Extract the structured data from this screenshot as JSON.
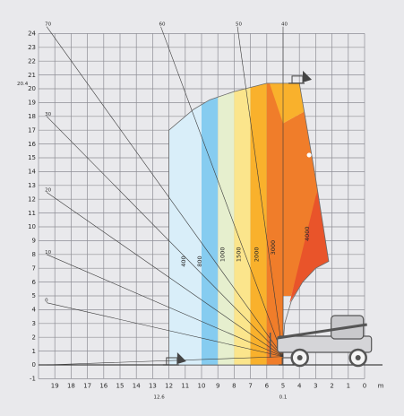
{
  "chart_data": {
    "type": "area",
    "title": "",
    "xlabel": "",
    "xunit_label": "m",
    "xlim": [
      0,
      20
    ],
    "ylim": [
      -1,
      24
    ],
    "x_ticks": [
      "19",
      "18",
      "17",
      "16",
      "15",
      "14",
      "13",
      "12",
      "11",
      "10",
      "9",
      "8",
      "7",
      "6",
      "5",
      "4",
      "3",
      "2",
      "1",
      "0"
    ],
    "y_ticks": [
      "-1",
      "0",
      "1",
      "2",
      "3",
      "4",
      "5",
      "6",
      "7",
      "8",
      "9",
      "10",
      "11",
      "12",
      "13",
      "14",
      "15",
      "16",
      "17",
      "18",
      "19",
      "20",
      "21",
      "22",
      "23",
      "24"
    ],
    "extra_y_labels": [
      {
        "value": 20.4,
        "label": "20.4"
      }
    ],
    "extra_x_labels": [
      {
        "value": 12.6,
        "label": "12.6"
      },
      {
        "value": 5.0,
        "label": "0.1"
      }
    ],
    "boom_angle_labels": [
      {
        "label": "70",
        "value": 24.5
      },
      {
        "label": "60",
        "value": 24.5
      },
      {
        "label": "50",
        "value": 24.5
      },
      {
        "label": "40",
        "value": 24.5
      },
      {
        "label": "30",
        "value": 18.0
      },
      {
        "label": "20",
        "value": 12.5
      },
      {
        "label": "10",
        "value": 8.0
      },
      {
        "label": "0",
        "value": 4.5
      },
      {
        "label": "",
        "value": 0
      }
    ],
    "load_zones": [
      {
        "label": "400",
        "color": "#d9eef9",
        "x_from": 10.0,
        "x_to": 12.0
      },
      {
        "label": "800",
        "color": "#86ccf0",
        "x_from": 9.0,
        "x_to": 10.0
      },
      {
        "label": "1000",
        "color": "#e6efce",
        "x_from": 8.0,
        "x_to": 9.0
      },
      {
        "label": "1500",
        "color": "#fbe58c",
        "x_from": 7.0,
        "x_to": 8.0
      },
      {
        "label": "2000",
        "color": "#f9b12c",
        "x_from": 6.0,
        "x_to": 7.0
      },
      {
        "label": "3000",
        "color": "#f07d2a",
        "x_from": 5.0,
        "x_to": 6.0
      },
      {
        "label": "4000",
        "color": "#e9542a",
        "x_from": 2.0,
        "x_to": 5.0
      }
    ],
    "envelope_outer": [
      [
        12.0,
        0
      ],
      [
        12.0,
        17.0
      ],
      [
        11.0,
        18.0
      ],
      [
        10.5,
        18.5
      ],
      [
        9.5,
        19.2
      ],
      [
        8.0,
        19.8
      ],
      [
        6.0,
        20.4
      ],
      [
        4.0,
        20.4
      ],
      [
        3.0,
        13.5
      ],
      [
        2.2,
        7.5
      ]
    ],
    "grid": true,
    "legend": "none"
  },
  "colors": {
    "background": "#e9e9ec",
    "grid": "#8e8e95",
    "boom_line": "#3a3a3a",
    "vehicle": "#555555",
    "marker_dot": "#ffffff"
  }
}
